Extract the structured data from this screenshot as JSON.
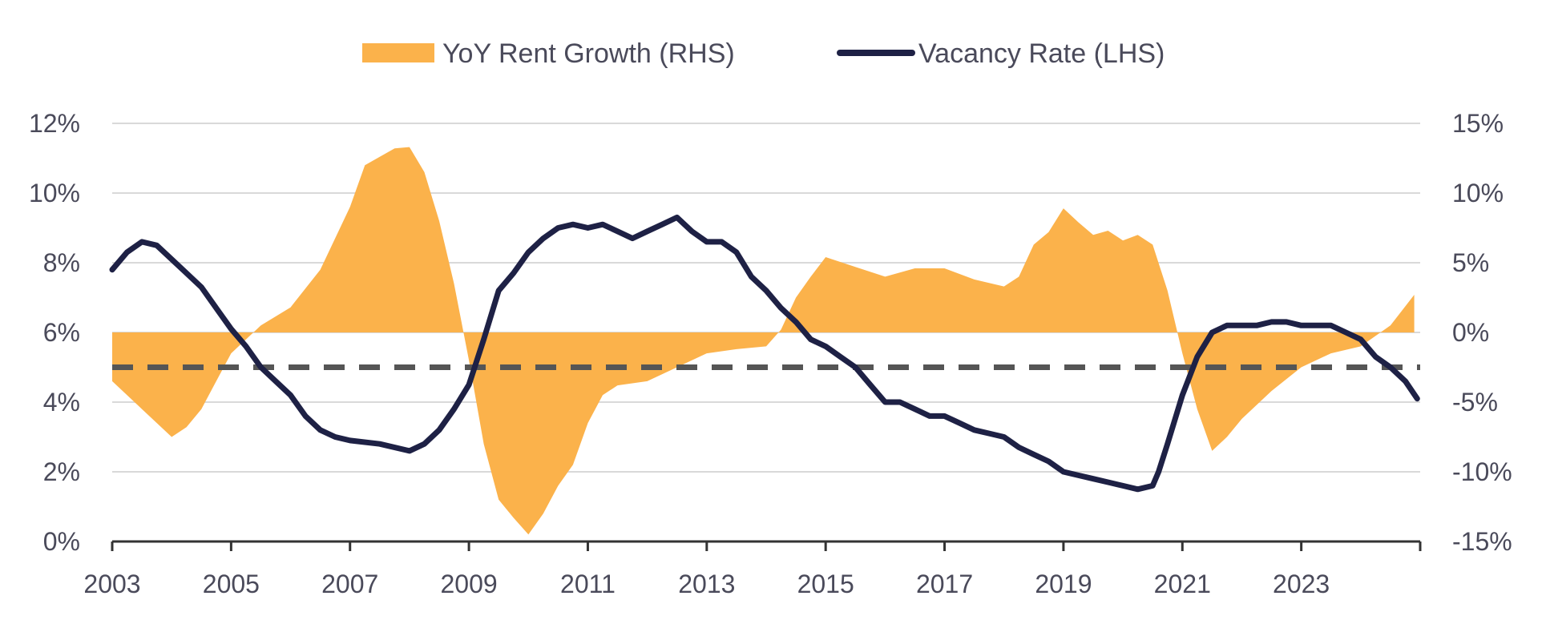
{
  "chart_data": {
    "type": "area+line",
    "title": "",
    "legend": {
      "placement": "top-center",
      "items": [
        {
          "label": "YoY Rent Growth (RHS)",
          "kind": "area",
          "color": "#FBB24B"
        },
        {
          "label": "Vacancy Rate (LHS)",
          "kind": "line",
          "color": "#1E2145"
        }
      ]
    },
    "x_axis": {
      "range": [
        2003,
        2025
      ],
      "ticks": [
        "2003",
        "2005",
        "2007",
        "2009",
        "2011",
        "2013",
        "2015",
        "2017",
        "2019",
        "2021",
        "2023"
      ]
    },
    "y_left": {
      "range": [
        0,
        12
      ],
      "ticks": [
        "0%",
        "2%",
        "4%",
        "6%",
        "8%",
        "10%",
        "12%"
      ]
    },
    "y_right": {
      "range": [
        -15,
        15
      ],
      "ticks": [
        "-15%",
        "-10%",
        "-5%",
        "0%",
        "5%",
        "10%",
        "15%"
      ]
    },
    "grid": true,
    "reference_line": {
      "axis": "left",
      "value": 5.0,
      "style": "dashed",
      "color": "#555555"
    },
    "series": [
      {
        "name": "YoY Rent Growth (RHS)",
        "axis": "right",
        "type": "area",
        "color": "#FBB24B",
        "x": [
          2003.0,
          2003.5,
          2004.0,
          2004.25,
          2004.5,
          2004.75,
          2005.0,
          2005.5,
          2006.0,
          2006.5,
          2007.0,
          2007.25,
          2007.5,
          2007.75,
          2008.0,
          2008.25,
          2008.5,
          2008.75,
          2009.0,
          2009.25,
          2009.5,
          2009.75,
          2010.0,
          2010.25,
          2010.5,
          2010.75,
          2011.0,
          2011.25,
          2011.5,
          2012.0,
          2012.5,
          2013.0,
          2013.5,
          2014.0,
          2014.25,
          2014.5,
          2014.75,
          2015.0,
          2015.5,
          2016.0,
          2016.5,
          2017.0,
          2017.5,
          2018.0,
          2018.25,
          2018.5,
          2018.75,
          2019.0,
          2019.25,
          2019.5,
          2019.75,
          2020.0,
          2020.25,
          2020.5,
          2020.75,
          2021.0,
          2021.25,
          2021.5,
          2021.75,
          2022.0,
          2022.5,
          2023.0,
          2023.5,
          2024.0,
          2024.5,
          2024.9
        ],
        "values": [
          -3.5,
          -5.5,
          -7.5,
          -6.8,
          -5.5,
          -3.5,
          -1.5,
          0.5,
          1.8,
          4.5,
          9.0,
          12.0,
          12.6,
          13.2,
          13.3,
          11.5,
          8.0,
          3.5,
          -2.0,
          -8.0,
          -12.0,
          -13.3,
          -14.5,
          -13.0,
          -11.0,
          -9.5,
          -6.5,
          -4.5,
          -3.8,
          -3.5,
          -2.5,
          -1.5,
          -1.2,
          -1.0,
          0.2,
          2.5,
          4.0,
          5.4,
          4.7,
          4.0,
          4.6,
          4.6,
          3.8,
          3.3,
          4.0,
          6.3,
          7.2,
          8.9,
          7.9,
          7.0,
          7.3,
          6.6,
          7.0,
          6.3,
          3.0,
          -1.5,
          -5.5,
          -8.5,
          -7.5,
          -6.2,
          -4.2,
          -2.5,
          -1.5,
          -1.0,
          0.5,
          2.7
        ]
      },
      {
        "name": "Vacancy Rate (LHS)",
        "axis": "left",
        "type": "line",
        "color": "#1E2145",
        "x": [
          2003.0,
          2003.25,
          2003.5,
          2003.75,
          2004.0,
          2004.25,
          2004.5,
          2004.75,
          2005.0,
          2005.25,
          2005.5,
          2005.75,
          2006.0,
          2006.25,
          2006.5,
          2006.75,
          2007.0,
          2007.5,
          2008.0,
          2008.25,
          2008.5,
          2008.75,
          2009.0,
          2009.25,
          2009.5,
          2009.75,
          2010.0,
          2010.25,
          2010.5,
          2010.75,
          2011.0,
          2011.25,
          2011.5,
          2011.75,
          2012.0,
          2012.25,
          2012.5,
          2012.75,
          2013.0,
          2013.25,
          2013.5,
          2013.75,
          2014.0,
          2014.25,
          2014.5,
          2014.75,
          2015.0,
          2015.25,
          2015.5,
          2015.75,
          2016.0,
          2016.25,
          2016.5,
          2016.75,
          2017.0,
          2017.25,
          2017.5,
          2017.75,
          2018.0,
          2018.25,
          2018.5,
          2018.75,
          2019.0,
          2019.25,
          2019.5,
          2019.75,
          2020.0,
          2020.25,
          2020.5,
          2020.6,
          2020.75,
          2021.0,
          2021.25,
          2021.5,
          2021.75,
          2022.0,
          2022.25,
          2022.5,
          2022.75,
          2023.0,
          2023.25,
          2023.5,
          2023.75,
          2024.0,
          2024.25,
          2024.5,
          2024.75,
          2024.95
        ],
        "values": [
          7.8,
          8.3,
          8.6,
          8.5,
          8.1,
          7.7,
          7.3,
          6.7,
          6.1,
          5.6,
          5.0,
          4.6,
          4.2,
          3.6,
          3.2,
          3.0,
          2.9,
          2.8,
          2.6,
          2.8,
          3.2,
          3.8,
          4.5,
          5.8,
          7.2,
          7.7,
          8.3,
          8.7,
          9.0,
          9.1,
          9.0,
          9.1,
          8.9,
          8.7,
          8.9,
          9.1,
          9.3,
          8.9,
          8.6,
          8.6,
          8.3,
          7.6,
          7.2,
          6.7,
          6.3,
          5.8,
          5.6,
          5.3,
          5.0,
          4.5,
          4.0,
          4.0,
          3.8,
          3.6,
          3.6,
          3.4,
          3.2,
          3.1,
          3.0,
          2.7,
          2.5,
          2.3,
          2.0,
          1.9,
          1.8,
          1.7,
          1.6,
          1.5,
          1.6,
          2.0,
          2.8,
          4.2,
          5.3,
          6.0,
          6.2,
          6.2,
          6.2,
          6.3,
          6.3,
          6.2,
          6.2,
          6.2,
          6.0,
          5.8,
          5.3,
          5.0,
          4.6,
          4.1
        ]
      }
    ]
  }
}
